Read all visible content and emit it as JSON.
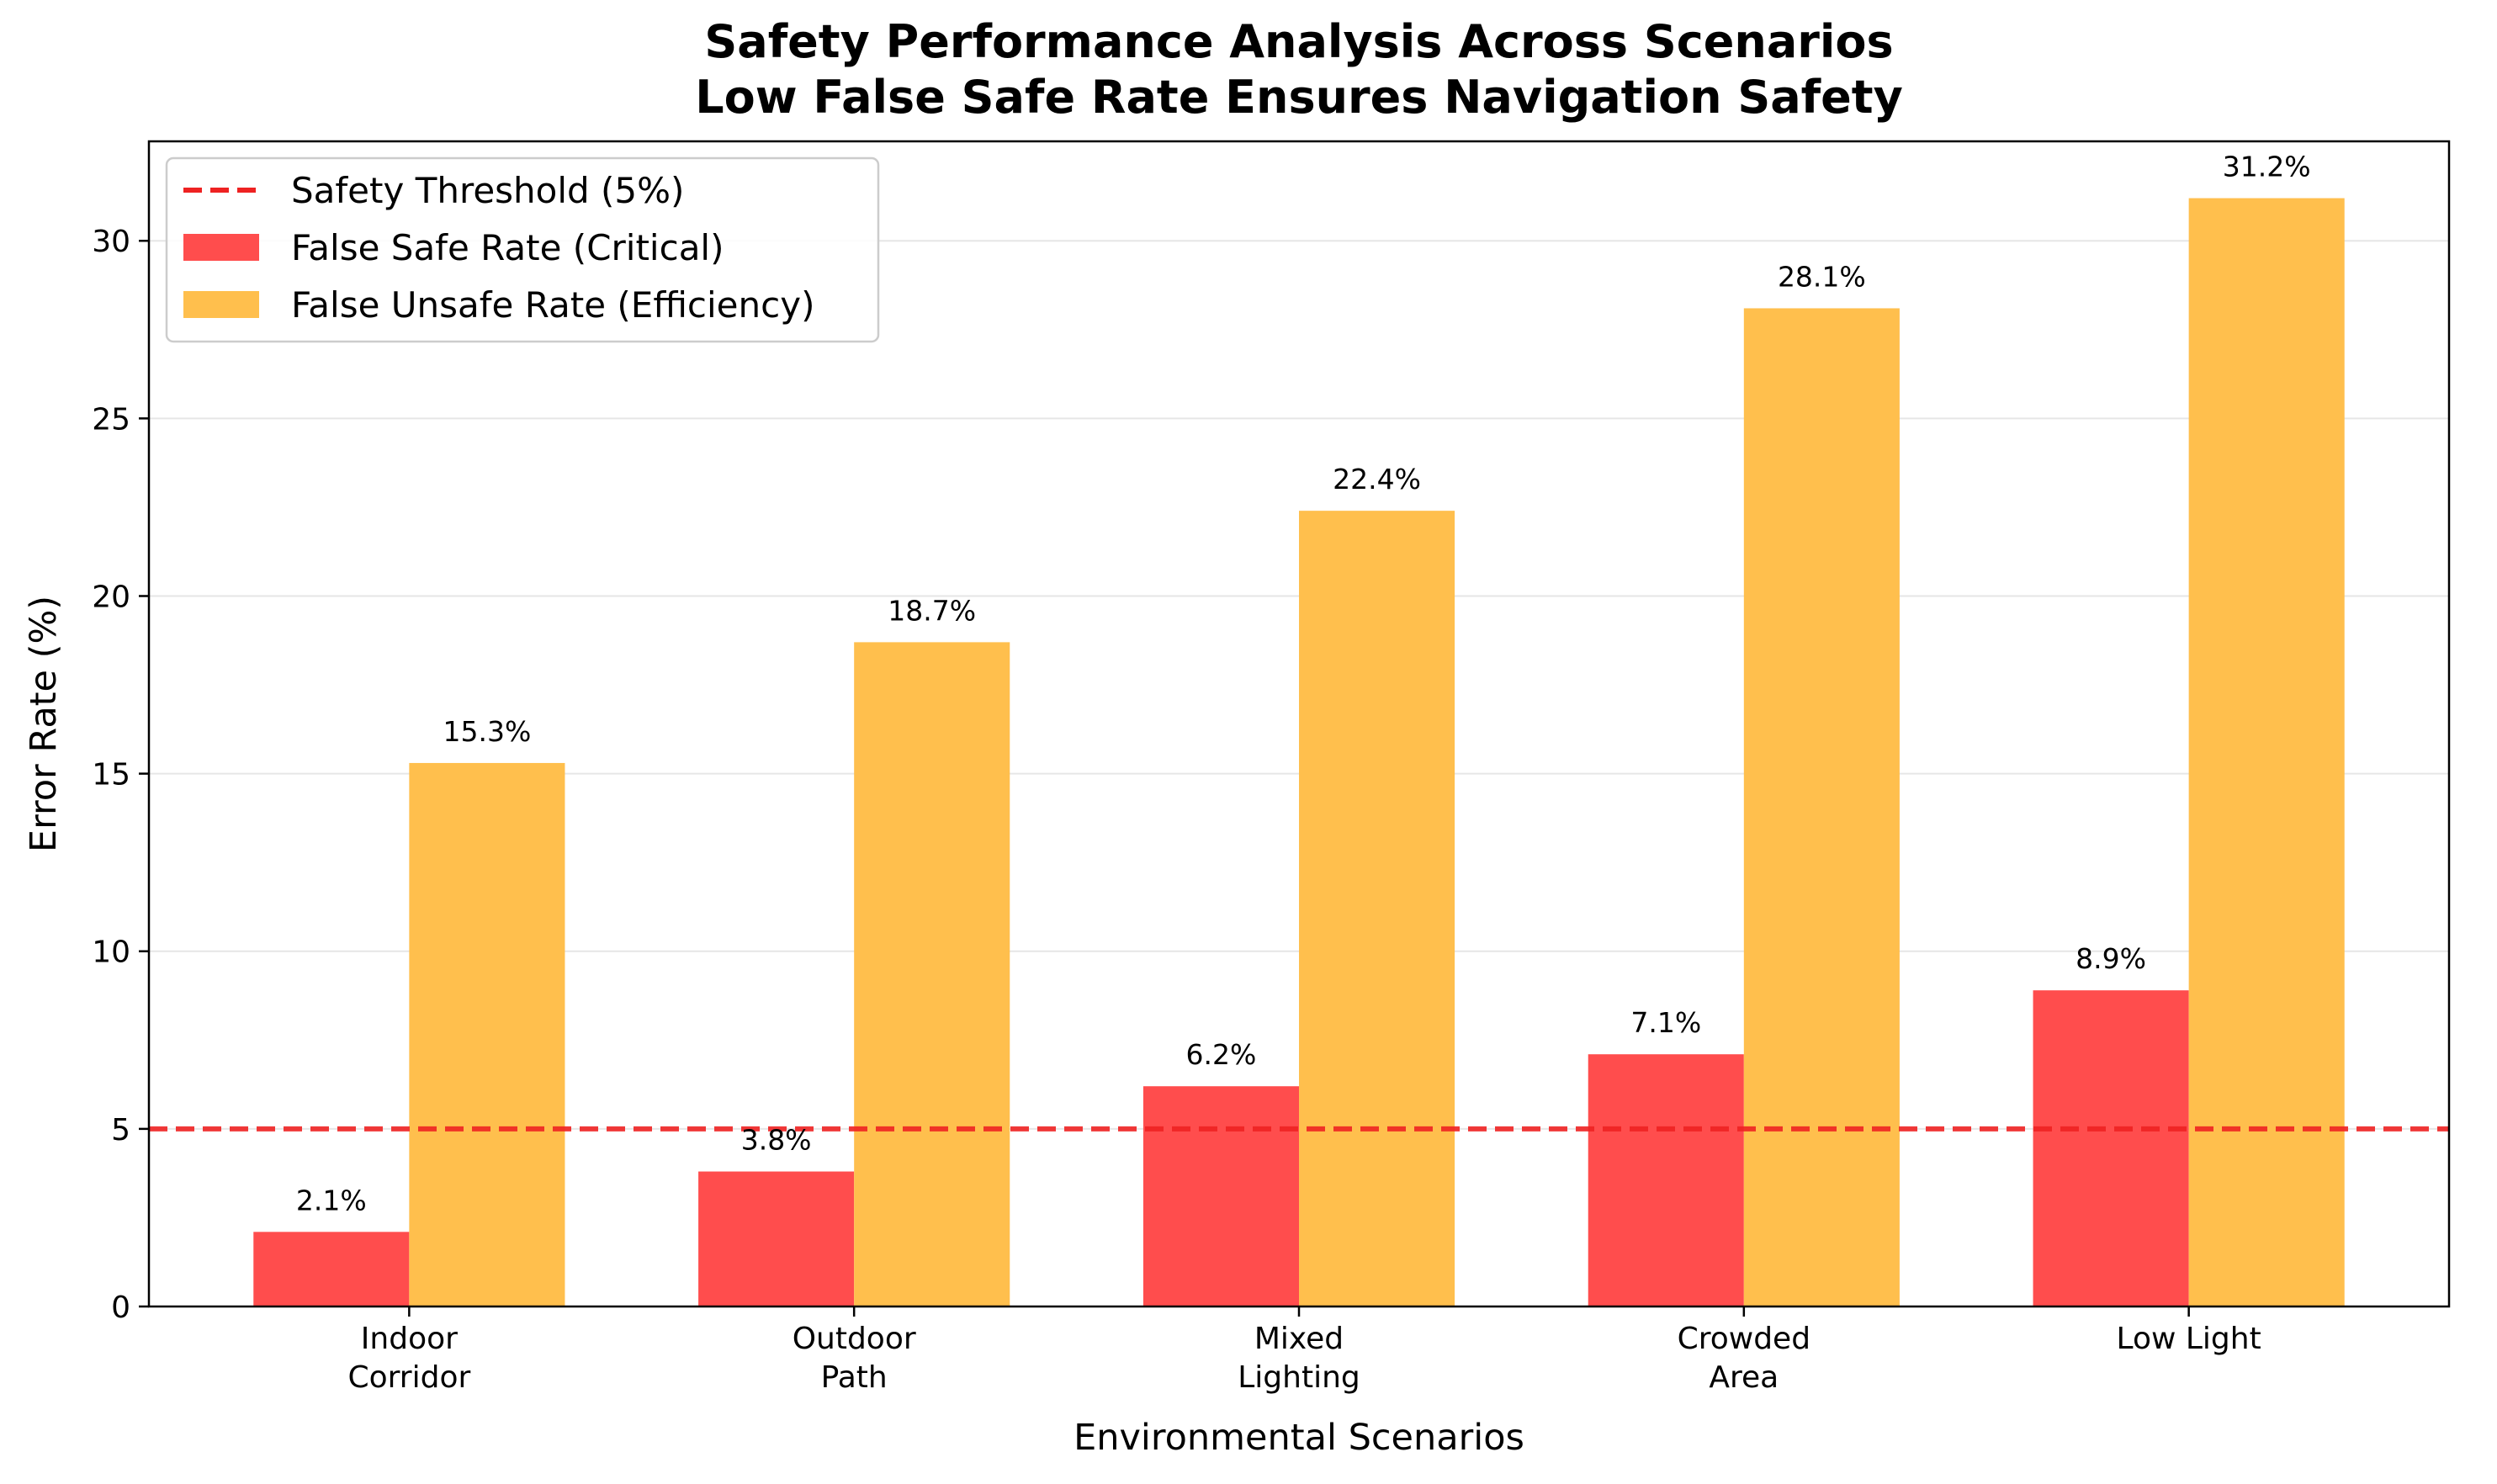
{
  "chart_data": {
    "type": "bar",
    "title": "Safety Performance Analysis Across Scenarios\nLow False Safe Rate Ensures Navigation Safety",
    "title_lines": [
      "Safety Performance Analysis Across Scenarios",
      "Low False Safe Rate Ensures Navigation Safety"
    ],
    "xlabel": "Environmental Scenarios",
    "ylabel": "Error Rate (%)",
    "ylim": [
      0,
      32.8
    ],
    "yticks": [
      0,
      5,
      10,
      15,
      20,
      25,
      30
    ],
    "grid": "y",
    "legend_position": "top-left",
    "categories": [
      "Indoor\nCorridor",
      "Outdoor\nPath",
      "Mixed\nLighting",
      "Crowded\nArea",
      "Low Light"
    ],
    "series": [
      {
        "name": "False Safe Rate (Critical)",
        "values": [
          2.1,
          3.8,
          6.2,
          7.1,
          8.9
        ],
        "labels": [
          "2.1%",
          "3.8%",
          "6.2%",
          "7.1%",
          "8.9%"
        ],
        "color": "#ff4d4d"
      },
      {
        "name": "False Unsafe Rate (Efficiency)",
        "values": [
          15.3,
          18.7,
          22.4,
          28.1,
          31.2
        ],
        "labels": [
          "15.3%",
          "18.7%",
          "22.4%",
          "28.1%",
          "31.2%"
        ],
        "color": "#ffbf4d"
      }
    ],
    "threshold": {
      "name": "Safety Threshold (5%)",
      "value": 5,
      "color": "#ee2222"
    }
  }
}
